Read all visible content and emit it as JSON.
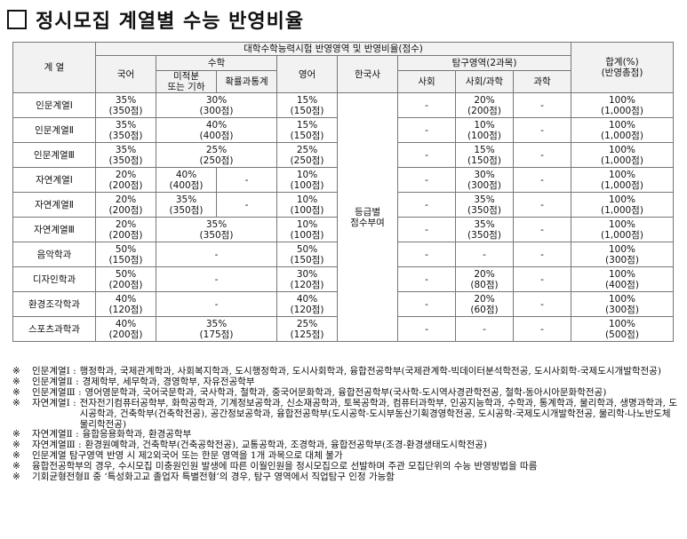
{
  "title": "정시모집 계열별 수능 반영비율",
  "header": {
    "group": "계 열",
    "top": "대학수학능력시험 반영영역 및 반영비율(점수)",
    "korean": "국어",
    "math": "수학",
    "math_a": "미적분\n또는 기하",
    "math_b": "확률과통계",
    "english": "영어",
    "history": "한국사",
    "inquiry": "탐구영역(2과목)",
    "social": "사회",
    "social_sci": "사회/과학",
    "science": "과학",
    "total": "합계(%)\n(반영총점)"
  },
  "history_merged": "등급별\n점수부여",
  "rows": [
    {
      "name": "인문계열Ⅰ",
      "korean": "35%\n(350점)",
      "math": "30%\n(300점)",
      "english": "15%\n(150점)",
      "social": "-",
      "social_sci": "20%\n(200점)",
      "science": "-",
      "total": "100%\n(1,000점)"
    },
    {
      "name": "인문계열Ⅱ",
      "korean": "35%\n(350점)",
      "math": "40%\n(400점)",
      "english": "15%\n(150점)",
      "social": "-",
      "social_sci": "10%\n(100점)",
      "science": "-",
      "total": "100%\n(1,000점)"
    },
    {
      "name": "인문계열Ⅲ",
      "korean": "35%\n(350점)",
      "math": "25%\n(250점)",
      "english": "25%\n(250점)",
      "social": "-",
      "social_sci": "15%\n(150점)",
      "science": "-",
      "total": "100%\n(1,000점)"
    },
    {
      "name": "자연계열Ⅰ",
      "korean": "20%\n(200점)",
      "math_a": "40%\n(400점)",
      "math_b": "-",
      "english": "10%\n(100점)",
      "social": "-",
      "social_sci": "30%\n(300점)",
      "science": "-",
      "total": "100%\n(1,000점)"
    },
    {
      "name": "자연계열Ⅱ",
      "korean": "20%\n(200점)",
      "math_a": "35%\n(350점)",
      "math_b": "-",
      "english": "10%\n(100점)",
      "social": "-",
      "social_sci": "35%\n(350점)",
      "science": "-",
      "total": "100%\n(1,000점)"
    },
    {
      "name": "자연계열Ⅲ",
      "korean": "20%\n(200점)",
      "math": "35%\n(350점)",
      "english": "10%\n(100점)",
      "social": "-",
      "social_sci": "35%\n(350점)",
      "science": "-",
      "total": "100%\n(1,000점)"
    },
    {
      "name": "음악학과",
      "korean": "50%\n(150점)",
      "math": "-",
      "english": "50%\n(150점)",
      "social": "-",
      "social_sci": "-",
      "science": "-",
      "total": "100%\n(300점)"
    },
    {
      "name": "디자인학과",
      "korean": "50%\n(200점)",
      "math": "-",
      "english": "30%\n(120점)",
      "social": "-",
      "social_sci": "20%\n(80점)",
      "science": "-",
      "total": "100%\n(400점)"
    },
    {
      "name": "환경조각학과",
      "korean": "40%\n(120점)",
      "math": "-",
      "english": "40%\n(120점)",
      "social": "-",
      "social_sci": "20%\n(60점)",
      "science": "-",
      "total": "100%\n(300점)"
    },
    {
      "name": "스포츠과학과",
      "korean": "40%\n(200점)",
      "math": "35%\n(175점)",
      "english": "25%\n(125점)",
      "social": "-",
      "social_sci": "-",
      "science": "-",
      "total": "100%\n(500점)"
    }
  ],
  "notes": [
    {
      "mark": "※",
      "label": "인문계열Ⅰ :",
      "text": "행정학과, 국제관계학과, 사회복지학과, 도시행정학과, 도시사회학과, 융합전공학부(국제관계학-빅데이터분석학전공, 도시사회학-국제도시개발학전공)"
    },
    {
      "mark": "※",
      "label": "인문계열Ⅱ :",
      "text": "경제학부, 세무학과, 경영학부, 자유전공학부"
    },
    {
      "mark": "※",
      "label": "인문계열Ⅲ :",
      "text": "영어영문학과, 국어국문학과, 국사학과, 철학과, 중국어문화학과, 융합전공학부(국사학-도시역사경관학전공, 철학-동아시아문화학전공)"
    },
    {
      "mark": "※",
      "label": "자연계열Ⅰ :",
      "text": "전자전기컴퓨터공학부, 화학공학과, 기계정보공학과, 신소재공학과, 토목공학과, 컴퓨터과학부, 인공지능학과, 수학과, 통계학과, 물리학과, 생명과학과, 도시공학과, 건축학부(건축학전공), 공간정보공학과, 융합전공학부(도시공학-도시부동산기획경영학전공, 도시공학-국제도시개발학전공, 물리학-나노반도체물리학전공)"
    },
    {
      "mark": "※",
      "label": "자연계열Ⅱ :",
      "text": "융합응용화학과, 환경공학부"
    },
    {
      "mark": "※",
      "label": "자연계열Ⅲ :",
      "text": "환경원예학과, 건축학부(건축공학전공), 교통공학과, 조경학과, 융합전공학부(조경-환경생태도시학전공)"
    },
    {
      "mark": "※",
      "label": "",
      "text": "인문계열 탐구영역 반영 시 제2외국어 또는 한문 영역을 1개 과목으로 대체 불가"
    },
    {
      "mark": "※",
      "label": "",
      "text": "융합전공학부의 경우, 수시모집 미충원인원 발생에 따른 이월인원을 정시모집으로 선발하며 주관 모집단위의 수능 반영방법을 따름"
    },
    {
      "mark": "※",
      "label": "",
      "text": "기회균형전형Ⅱ 중 ‘특성화고교 졸업자 특별전형’의 경우, 탐구 영역에서 직업탐구 인정 가능함"
    }
  ]
}
